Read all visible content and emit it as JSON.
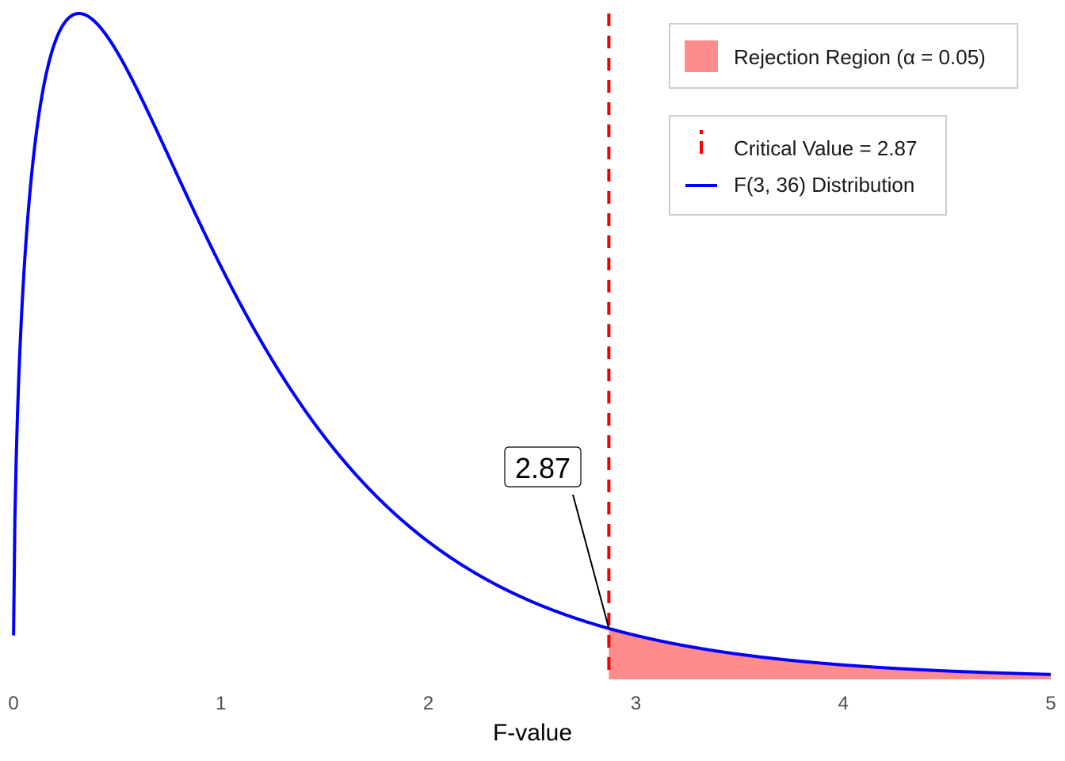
{
  "chart_data": {
    "type": "area",
    "xlabel": "F-value",
    "ylabel": "",
    "xlim": [
      0,
      5
    ],
    "x_ticks": [
      "0",
      "1",
      "2",
      "3",
      "4",
      "5"
    ],
    "grid": false,
    "distribution": {
      "df1": 3,
      "df2": 36
    },
    "critical_value": 2.87,
    "alpha": 0.05,
    "annotation": "2.87",
    "legend": {
      "placement": "top-right",
      "fill_group": [
        {
          "label": "Rejection Region (α = 0.05)",
          "color": "#ff8c8c",
          "kind": "fill"
        }
      ],
      "line_group": [
        {
          "label": "Critical Value = 2.87",
          "color": "#ff0000",
          "kind": "dashed-vline"
        },
        {
          "label": "F(3, 36) Distribution",
          "color": "#0000ff",
          "kind": "line"
        }
      ]
    },
    "colors": {
      "curve": "#0000ff",
      "critical_line": "#ee0000",
      "rejection_fill": "#ff8c8c"
    }
  }
}
